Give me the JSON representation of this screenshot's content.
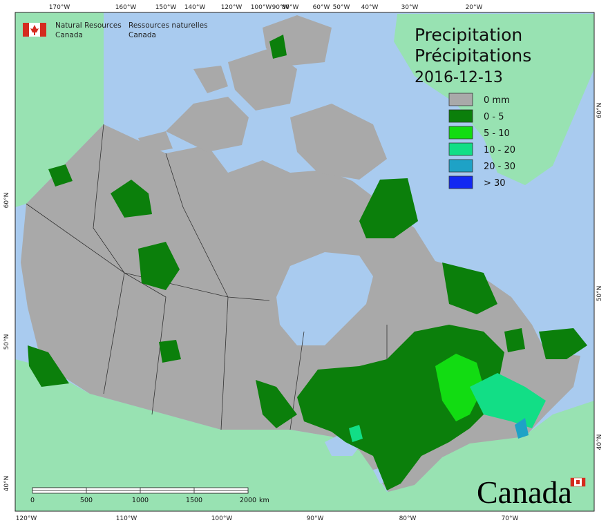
{
  "agency": {
    "en": [
      "Natural Resources",
      "Canada"
    ],
    "fr": [
      "Ressources naturelles",
      "Canada"
    ]
  },
  "title": [
    "Precipitation",
    "Précipitations"
  ],
  "date": "2016-12-13",
  "legend": [
    {
      "label": "0 mm",
      "color": "#a9a9a9"
    },
    {
      "label": "0 - 5",
      "color": "#0b7f0b"
    },
    {
      "label": "5 - 10",
      "color": "#12dc12"
    },
    {
      "label": "10 - 20",
      "color": "#12de86"
    },
    {
      "label": "20 - 30",
      "color": "#1ea2c6"
    },
    {
      "label": "> 30",
      "color": "#1228f2"
    }
  ],
  "graticule": {
    "top": [
      "170°W",
      "160°W",
      "150°W",
      "140°W",
      "120°W",
      "100°W",
      "90°W",
      "80°W",
      "60°W",
      "50°W",
      "40°W",
      "30°W",
      "20°W"
    ],
    "bottom": [
      "120°W",
      "110°W",
      "100°W",
      "90°W",
      "80°W",
      "70°W"
    ],
    "left": [
      "60°N",
      "50°N",
      "40°N"
    ],
    "right": [
      "60°N",
      "50°N",
      "40°N"
    ]
  },
  "scale_bar": {
    "ticks": [
      0,
      500,
      1000,
      1500,
      2000
    ],
    "unit": "km"
  },
  "wordmark": "Canada"
}
